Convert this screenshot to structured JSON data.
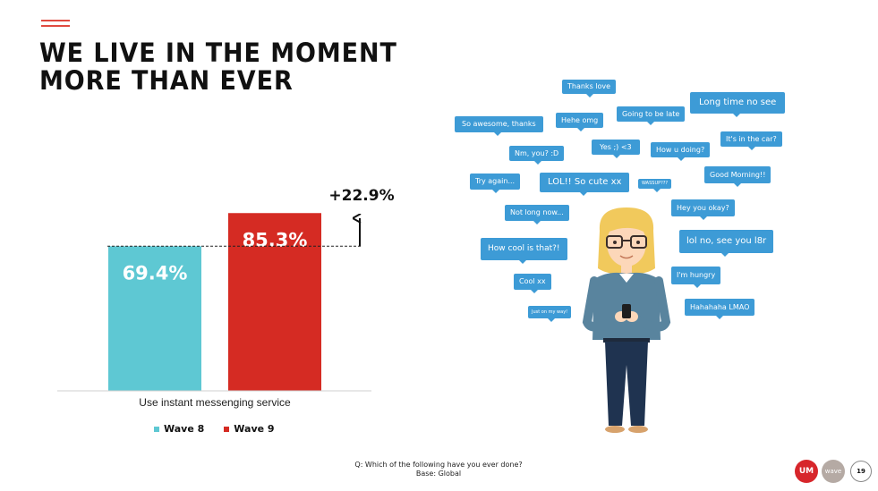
{
  "title": {
    "line1": "WE LIVE IN THE MOMENT",
    "line2": "MORE THAN EVER"
  },
  "chart_data": {
    "type": "bar",
    "categories": [
      "Use instant messenging service"
    ],
    "series": [
      {
        "name": "Wave 8",
        "values": [
          69.4
        ],
        "label": "69.4%",
        "color": "#5ec8d3"
      },
      {
        "name": "Wave 9",
        "values": [
          85.3
        ],
        "label": "85.3%",
        "color": "#d52b23"
      }
    ],
    "annotation": "+22.9%",
    "ylim": [
      0,
      100
    ],
    "legend_position": "bottom"
  },
  "footnote": {
    "question": "Q: Which of the following have you ever done?",
    "base": "Base: Global"
  },
  "bubbles": [
    "Thanks love",
    "Long time no see",
    "Hehe omg",
    "Going to be late",
    "So awesome, thanks",
    "It's in the car?",
    "Nm, you? :D",
    "Yes ;) <3",
    "How u doing?",
    "Good Morning!!",
    "Try again...",
    "LOL!! So cute xx",
    "WASSUP???",
    "Hey you okay?",
    "Not long now...",
    "lol no, see you l8r",
    "How cool is that?!",
    "I'm hungry",
    "Cool xx",
    "Hahahaha LMAO",
    "Just on my way!"
  ],
  "brand": {
    "um": "UM",
    "wave": "wave",
    "page": "19"
  }
}
